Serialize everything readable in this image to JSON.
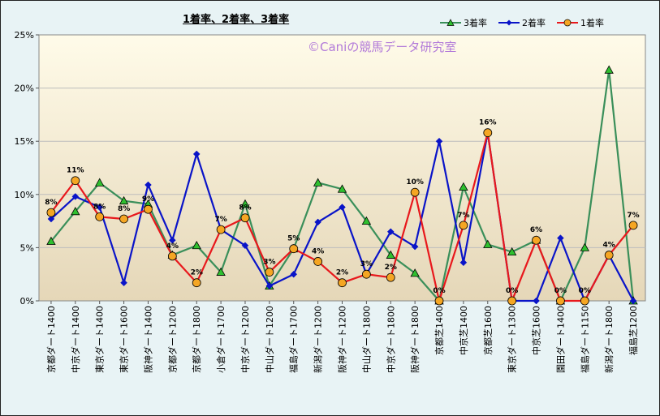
{
  "watermark": "©Caniの競馬データ研究室",
  "colors": {
    "s3": "#3a8f5a",
    "s2": "#0a14c8",
    "s1": "#e8181c",
    "marker3": "#2fc02f",
    "marker1": "#f5a623",
    "grid": "#bdbdbd"
  },
  "chart_data": {
    "type": "line",
    "title": "1着率、2着率、3着率",
    "xlabel": "",
    "ylabel": "",
    "ylim": [
      0,
      25
    ],
    "yticks": [
      "0%",
      "5%",
      "10%",
      "15%",
      "20%",
      "25%"
    ],
    "grid": true,
    "legend": "top-right",
    "categories": [
      "京都ダート1400",
      "中京ダート1400",
      "東京ダート1400",
      "東京ダート1600",
      "阪神ダート1400",
      "京都ダート1200",
      "京都ダート1800",
      "小倉ダート1700",
      "中京ダート1200",
      "中山ダート1200",
      "福島ダート1700",
      "新潟ダート1200",
      "阪神ダート1200",
      "中山ダート1800",
      "中京ダート1800",
      "阪神ダート1800",
      "京都芝1400",
      "中京芝1400",
      "京都芝1600",
      "東京ダート1300",
      "中京芝1600",
      "園田ダート1400",
      "福島ダート1150",
      "新潟ダート1800",
      "福島芝1200"
    ],
    "series": [
      {
        "name": "3着率",
        "values": [
          5.6,
          8.4,
          11.1,
          9.4,
          9.1,
          4.3,
          5.2,
          2.7,
          9.1,
          1.4,
          4.9,
          11.1,
          10.5,
          7.5,
          4.3,
          2.6,
          0,
          10.7,
          5.3,
          4.6,
          5.7,
          0,
          5.0,
          21.7,
          0
        ]
      },
      {
        "name": "2着率",
        "values": [
          7.7,
          9.8,
          8.8,
          1.7,
          10.9,
          5.7,
          13.8,
          6.7,
          5.2,
          1.4,
          2.5,
          7.4,
          8.8,
          2.5,
          6.5,
          5.1,
          15.0,
          3.6,
          15.8,
          0,
          0,
          5.9,
          0,
          4.3,
          0
        ]
      },
      {
        "name": "1着率",
        "values": [
          8.3,
          11.3,
          7.9,
          7.7,
          8.6,
          4.2,
          1.7,
          6.7,
          7.8,
          2.7,
          4.9,
          3.7,
          1.7,
          2.5,
          2.2,
          10.2,
          0,
          7.1,
          15.8,
          0,
          5.7,
          0,
          0,
          4.3,
          7.1
        ]
      }
    ],
    "data_labels": [
      "8%",
      "11%",
      "8%",
      "8%",
      "9%",
      "4%",
      "2%",
      "7%",
      "8%",
      "3%",
      "5%",
      "4%",
      "2%",
      "3%",
      "2%",
      "10%",
      "0%",
      "7%",
      "16%",
      "0%",
      "6%",
      "0%",
      "0%",
      "4%",
      "7%"
    ]
  }
}
